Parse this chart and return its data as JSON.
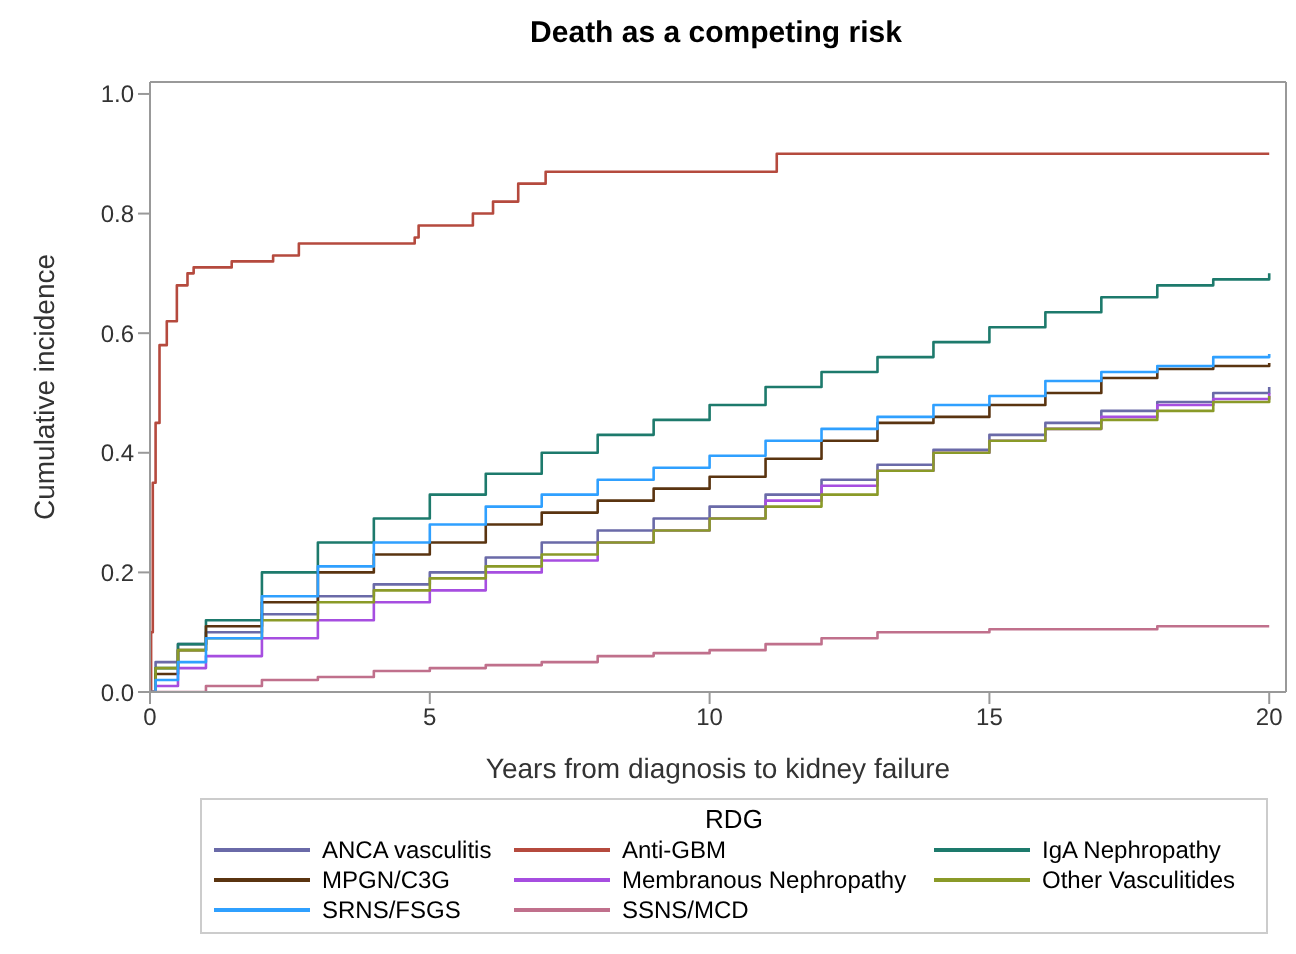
{
  "chart_data": {
    "type": "step",
    "title": "Death as a competing risk",
    "xlabel": "Years from diagnosis to kidney failure",
    "ylabel": "Cumulative incidence",
    "legend_title": "RDG",
    "legend": "bottom",
    "grid": false,
    "marker": "none",
    "xlim": [
      0,
      20.3
    ],
    "xticks": [
      0,
      5,
      10,
      15,
      20
    ],
    "ylim": [
      0,
      1.02
    ],
    "yticks": [
      {
        "value": 0,
        "label": "0.0"
      },
      {
        "value": 0.2,
        "label": "0.2"
      },
      {
        "value": 0.4,
        "label": "0.4"
      },
      {
        "value": 0.6,
        "label": "0.6"
      },
      {
        "value": 0.8,
        "label": "0.8"
      },
      {
        "value": 1,
        "label": "1.0"
      }
    ],
    "series": [
      {
        "name": "ANCA vasculitis",
        "color": "#6a6aa8",
        "x": [
          0,
          0.1,
          0.5,
          1,
          2,
          3,
          4,
          5,
          6,
          7,
          8,
          9,
          10,
          11,
          12,
          13,
          14,
          15,
          16,
          17,
          18,
          19,
          20
        ],
        "values": [
          0,
          0.05,
          0.08,
          0.1,
          0.13,
          0.16,
          0.18,
          0.2,
          0.225,
          0.25,
          0.27,
          0.29,
          0.31,
          0.33,
          0.355,
          0.38,
          0.405,
          0.43,
          0.45,
          0.47,
          0.485,
          0.5,
          0.51
        ]
      },
      {
        "name": "Anti-GBM",
        "color": "#b54a3e",
        "x": [
          0,
          0.02,
          0.05,
          0.1,
          0.17,
          0.3,
          0.48,
          0.67,
          0.78,
          1.46,
          2.2,
          2.66,
          4.73,
          4.8,
          5.77,
          6.13,
          6.58,
          7.07,
          11.2,
          20
        ],
        "values": [
          0,
          0.1,
          0.35,
          0.45,
          0.58,
          0.62,
          0.68,
          0.7,
          0.71,
          0.72,
          0.73,
          0.75,
          0.76,
          0.78,
          0.8,
          0.82,
          0.85,
          0.87,
          0.9,
          0.9
        ]
      },
      {
        "name": "IgA Nephropathy",
        "color": "#1d7a6c",
        "x": [
          0,
          0.1,
          0.5,
          1,
          2,
          3,
          4,
          5,
          6,
          7,
          8,
          9,
          10,
          11,
          12,
          13,
          14,
          15,
          16,
          17,
          18,
          19,
          20
        ],
        "values": [
          0,
          0.04,
          0.08,
          0.12,
          0.2,
          0.25,
          0.29,
          0.33,
          0.365,
          0.4,
          0.43,
          0.455,
          0.48,
          0.51,
          0.535,
          0.56,
          0.585,
          0.61,
          0.635,
          0.66,
          0.68,
          0.69,
          0.7
        ]
      },
      {
        "name": "MPGN/C3G",
        "color": "#5a3410",
        "x": [
          0,
          0.1,
          0.5,
          1,
          2,
          3,
          4,
          5,
          6,
          7,
          8,
          9,
          10,
          11,
          12,
          13,
          14,
          15,
          16,
          17,
          18,
          19,
          20
        ],
        "values": [
          0,
          0.03,
          0.07,
          0.11,
          0.15,
          0.2,
          0.23,
          0.25,
          0.28,
          0.3,
          0.32,
          0.34,
          0.36,
          0.39,
          0.42,
          0.45,
          0.46,
          0.48,
          0.5,
          0.525,
          0.54,
          0.545,
          0.55
        ]
      },
      {
        "name": "Membranous Nephropathy",
        "color": "#a64ee0",
        "x": [
          0,
          0.1,
          0.5,
          1,
          2,
          3,
          4,
          5,
          6,
          7,
          8,
          9,
          10,
          11,
          12,
          13,
          14,
          15,
          16,
          17,
          18,
          19,
          20
        ],
        "values": [
          0,
          0.01,
          0.04,
          0.06,
          0.09,
          0.12,
          0.15,
          0.17,
          0.2,
          0.22,
          0.25,
          0.27,
          0.29,
          0.32,
          0.345,
          0.37,
          0.4,
          0.42,
          0.44,
          0.46,
          0.48,
          0.49,
          0.5
        ]
      },
      {
        "name": "Other Vasculitides",
        "color": "#8a9a28",
        "x": [
          0,
          0.1,
          0.5,
          1,
          2,
          3,
          4,
          5,
          6,
          7,
          8,
          9,
          10,
          11,
          12,
          13,
          14,
          15,
          16,
          17,
          18,
          19,
          20
        ],
        "values": [
          0,
          0.04,
          0.07,
          0.09,
          0.12,
          0.15,
          0.17,
          0.19,
          0.21,
          0.23,
          0.25,
          0.27,
          0.29,
          0.31,
          0.33,
          0.37,
          0.4,
          0.42,
          0.44,
          0.455,
          0.47,
          0.485,
          0.495
        ]
      },
      {
        "name": "SRNS/FSGS",
        "color": "#2fa0ff",
        "x": [
          0,
          0.1,
          0.5,
          1,
          2,
          3,
          4,
          5,
          6,
          7,
          8,
          9,
          10,
          11,
          12,
          13,
          14,
          15,
          16,
          17,
          18,
          19,
          20
        ],
        "values": [
          0,
          0.02,
          0.05,
          0.09,
          0.16,
          0.21,
          0.25,
          0.28,
          0.31,
          0.33,
          0.355,
          0.375,
          0.395,
          0.42,
          0.44,
          0.46,
          0.48,
          0.495,
          0.52,
          0.535,
          0.545,
          0.56,
          0.565
        ]
      },
      {
        "name": "SSNS/MCD",
        "color": "#c0708c",
        "x": [
          0,
          1,
          2,
          3,
          4,
          5,
          6,
          7,
          8,
          9,
          10,
          11,
          12,
          13,
          14,
          15,
          16,
          17,
          18,
          19,
          20
        ],
        "values": [
          0,
          0.01,
          0.02,
          0.025,
          0.035,
          0.04,
          0.045,
          0.05,
          0.06,
          0.065,
          0.07,
          0.08,
          0.09,
          0.1,
          0.1,
          0.105,
          0.105,
          0.105,
          0.11,
          0.11,
          0.11
        ]
      }
    ]
  }
}
